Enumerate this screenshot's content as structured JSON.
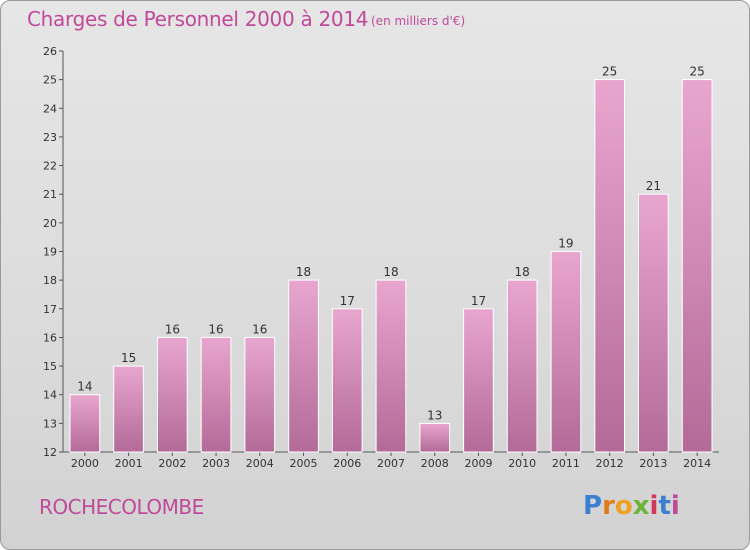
{
  "header": {
    "title": "Charges de Personnel 2000 à 2014",
    "subtitle": "(en milliers d'€)"
  },
  "footer": {
    "commune": "ROCHECOLOMBE",
    "logo_letters": [
      "P",
      "r",
      "o",
      "x",
      "i",
      "t",
      "i"
    ]
  },
  "colors": {
    "accent": "#c04a9a",
    "bar_top": "#e8a6cf",
    "bar_bottom": "#b36a98",
    "logo": [
      "#3a7fd0",
      "#e07b1a",
      "#f0a020",
      "#6fb33a",
      "#d03a5a",
      "#3a7fd0",
      "#c04a9a"
    ]
  },
  "chart_data": {
    "type": "bar",
    "categories": [
      "2000",
      "2001",
      "2002",
      "2003",
      "2004",
      "2005",
      "2006",
      "2007",
      "2008",
      "2009",
      "2010",
      "2011",
      "2012",
      "2013",
      "2014"
    ],
    "values": [
      14,
      15,
      16,
      16,
      16,
      18,
      17,
      18,
      13,
      17,
      18,
      19,
      25,
      21,
      25
    ],
    "title": "Charges de Personnel 2000 à 2014",
    "subtitle": "(en milliers d'€)",
    "ylim": [
      12,
      26
    ],
    "yticks": [
      12,
      13,
      14,
      15,
      16,
      17,
      18,
      19,
      20,
      21,
      22,
      23,
      24,
      25,
      26
    ],
    "grid": false,
    "data_labels": true
  }
}
